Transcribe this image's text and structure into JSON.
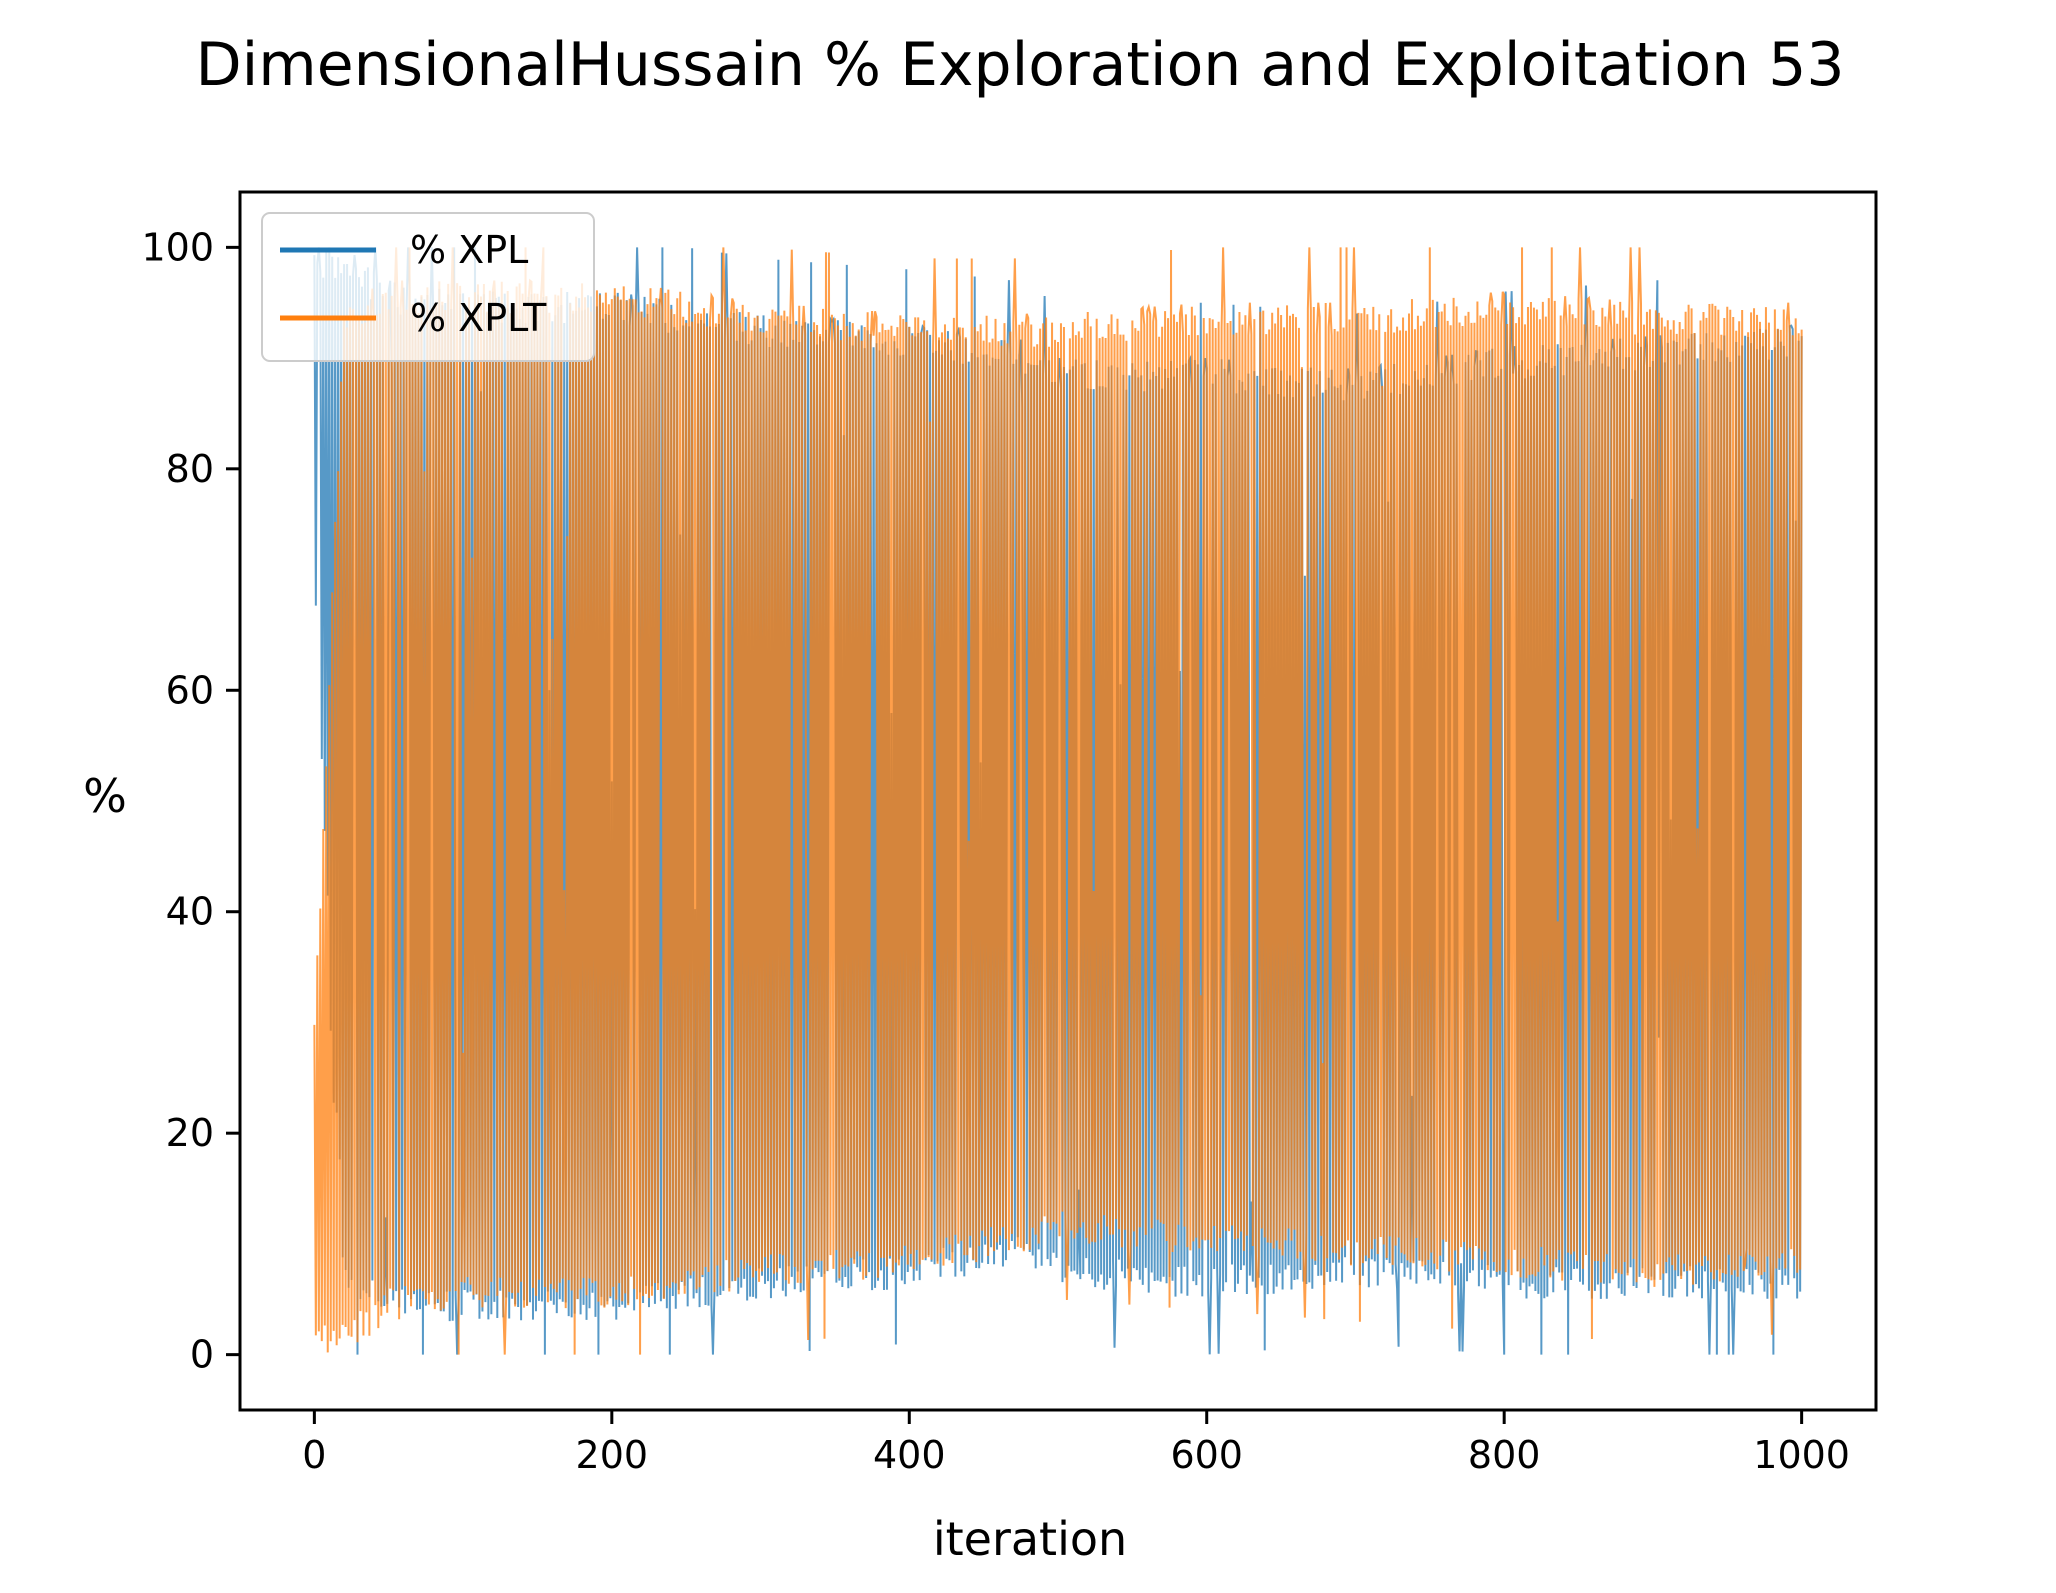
{
  "chart_data": {
    "type": "line",
    "title": "DimensionalHussain % Exploration and Exploitation 53",
    "xlabel": "iteration",
    "ylabel": "%",
    "xlim": [
      -50,
      1050
    ],
    "ylim": [
      -5,
      105
    ],
    "x_ticks": [
      0,
      200,
      400,
      600,
      800,
      1000
    ],
    "y_ticks": [
      0,
      20,
      40,
      60,
      80,
      100
    ],
    "x_tick_labels": [
      "0",
      "200",
      "400",
      "600",
      "800",
      "1000"
    ],
    "y_tick_labels": [
      "0",
      "20",
      "40",
      "60",
      "80",
      "100"
    ],
    "grid": false,
    "legend_position": "upper-left",
    "x_range": [
      0,
      1000
    ],
    "series": [
      {
        "name": "% XPL",
        "color": "#1f77b4",
        "alpha": 0.75,
        "envelope": [
          {
            "x": 0,
            "low": 70,
            "high": 100
          },
          {
            "x": 20,
            "low": 5,
            "high": 100
          },
          {
            "x": 50,
            "low": 3,
            "high": 97
          },
          {
            "x": 100,
            "low": 3,
            "high": 96
          },
          {
            "x": 200,
            "low": 3,
            "high": 96
          },
          {
            "x": 300,
            "low": 5,
            "high": 94
          },
          {
            "x": 400,
            "low": 6,
            "high": 93
          },
          {
            "x": 470,
            "low": 8,
            "high": 92
          },
          {
            "x": 500,
            "low": 6,
            "high": 90
          },
          {
            "x": 600,
            "low": 5,
            "high": 90
          },
          {
            "x": 700,
            "low": 6,
            "high": 89
          },
          {
            "x": 800,
            "low": 5,
            "high": 91
          },
          {
            "x": 900,
            "low": 5,
            "high": 92
          },
          {
            "x": 1000,
            "low": 5,
            "high": 93
          }
        ]
      },
      {
        "name": "% XPLT",
        "color": "#ff7f0e",
        "alpha": 0.75,
        "envelope": [
          {
            "x": 0,
            "low": 0,
            "high": 30
          },
          {
            "x": 20,
            "low": 0,
            "high": 95
          },
          {
            "x": 50,
            "low": 3,
            "high": 97
          },
          {
            "x": 100,
            "low": 4,
            "high": 97
          },
          {
            "x": 200,
            "low": 4,
            "high": 97
          },
          {
            "x": 300,
            "low": 6,
            "high": 95
          },
          {
            "x": 400,
            "low": 7,
            "high": 94
          },
          {
            "x": 470,
            "low": 9,
            "high": 94
          },
          {
            "x": 500,
            "low": 10,
            "high": 94
          },
          {
            "x": 600,
            "low": 9,
            "high": 95
          },
          {
            "x": 700,
            "low": 8,
            "high": 95
          },
          {
            "x": 800,
            "low": 7,
            "high": 96
          },
          {
            "x": 900,
            "low": 6,
            "high": 95
          },
          {
            "x": 1000,
            "low": 7,
            "high": 95
          }
        ]
      }
    ]
  }
}
